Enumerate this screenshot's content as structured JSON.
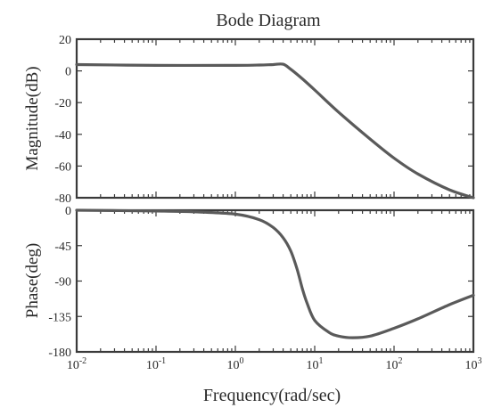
{
  "title": "Bode Diagram",
  "xlabel": "Frequency(rad/sec)",
  "chart_data": [
    {
      "type": "line",
      "ylabel": "Magnitude(dB)",
      "xscale": "log",
      "xlim": [
        0.01,
        1000
      ],
      "ylim": [
        -80,
        20
      ],
      "yticks": [
        20,
        0,
        -20,
        -40,
        -60,
        -80
      ],
      "ytick_labels": [
        "20",
        "0",
        "-20",
        "-40",
        "-60",
        "-80"
      ],
      "grid": false,
      "series": [
        {
          "x": [
            0.01,
            0.1,
            1,
            2,
            3,
            4,
            5,
            7,
            10,
            20,
            50,
            100,
            200,
            500,
            1000
          ],
          "values": [
            4,
            3.5,
            3.5,
            3.7,
            4,
            4.2,
            1,
            -5,
            -12,
            -26,
            -43,
            -55,
            -65,
            -75,
            -80
          ]
        }
      ]
    },
    {
      "type": "line",
      "ylabel": "Phase(deg)",
      "xscale": "log",
      "xlim": [
        0.01,
        1000
      ],
      "ylim": [
        -180,
        0
      ],
      "yticks": [
        0,
        -45,
        -90,
        -135,
        -180
      ],
      "ytick_labels": [
        "0",
        "-45",
        "-90",
        "-135",
        "-180"
      ],
      "xtick_base": "10",
      "xtick_exponents": [
        "-2",
        "-1",
        "0",
        "1",
        "2",
        "3"
      ],
      "grid": false,
      "series": [
        {
          "x": [
            0.01,
            0.1,
            0.3,
            1,
            2,
            3,
            4,
            5,
            6,
            7,
            8,
            10,
            15,
            20,
            30,
            50,
            100,
            200,
            500,
            1000
          ],
          "values": [
            0,
            -1,
            -2,
            -5,
            -12,
            -22,
            -35,
            -52,
            -75,
            -100,
            -118,
            -140,
            -155,
            -160,
            -162,
            -160,
            -150,
            -138,
            -120,
            -108
          ]
        }
      ]
    }
  ]
}
